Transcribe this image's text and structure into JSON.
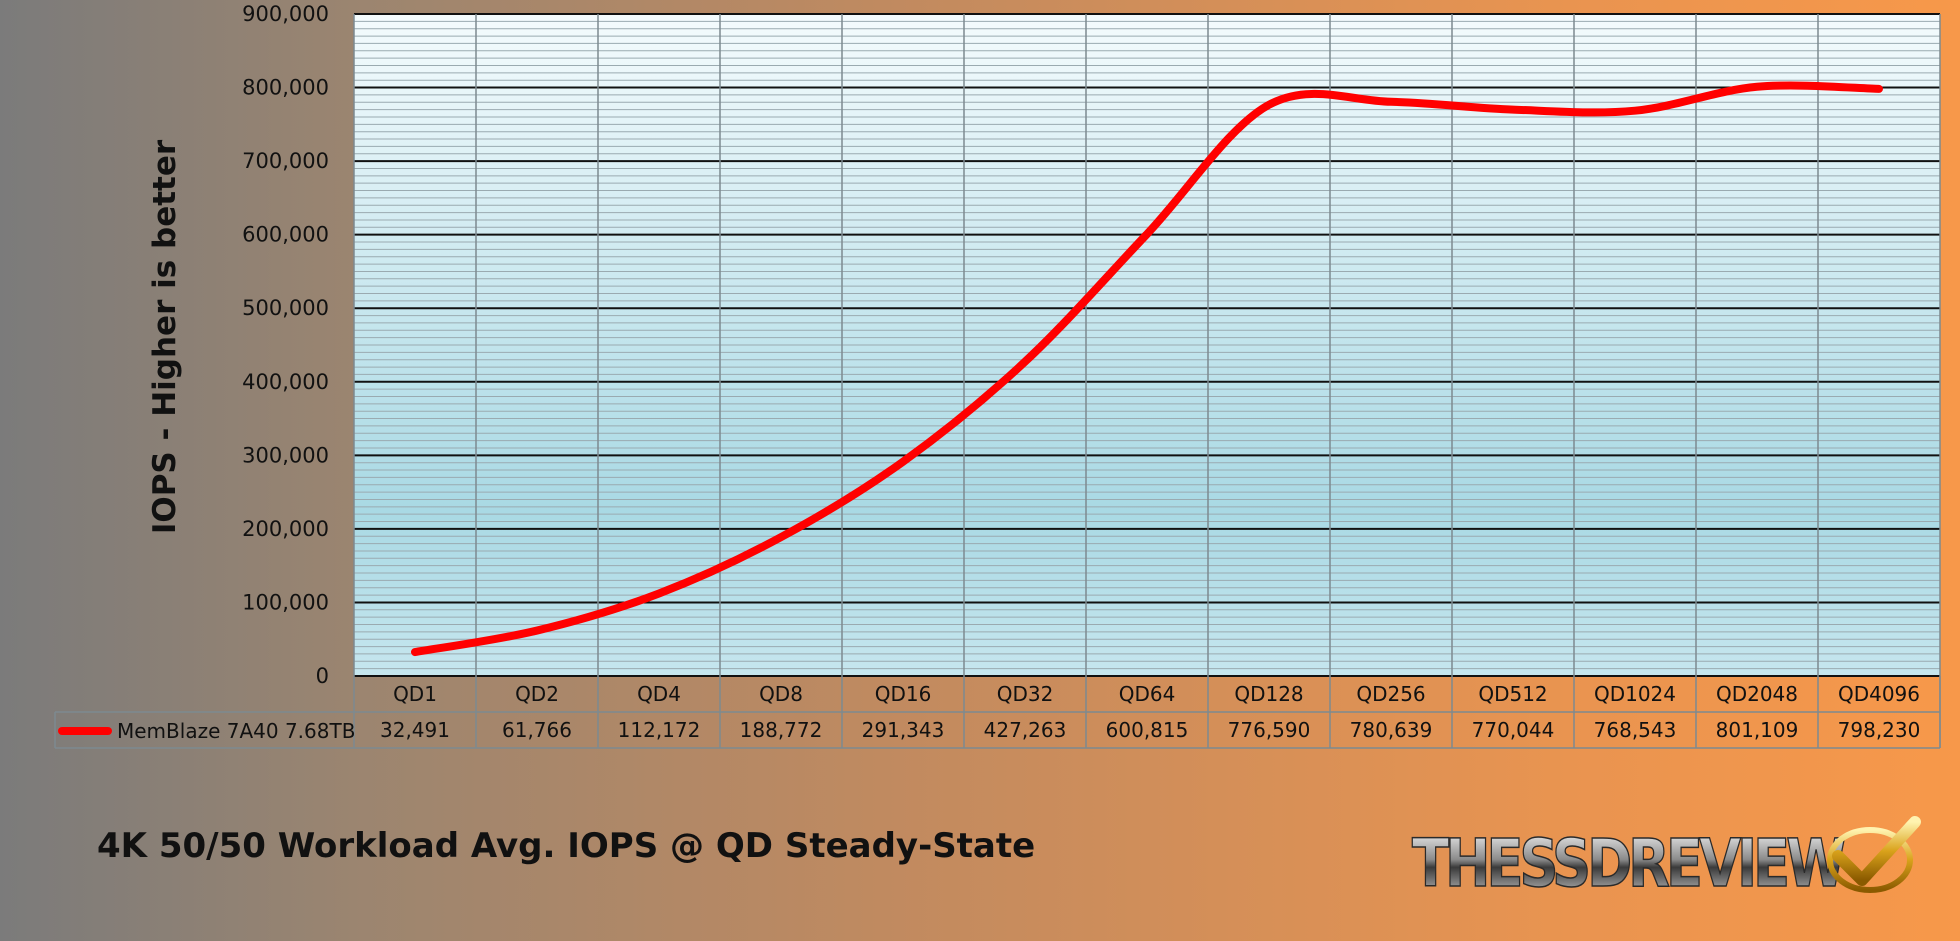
{
  "chart_data": {
    "type": "line",
    "title": "4K 50/50 Workload Avg. IOPS @ QD Steady-State",
    "ylabel": "IOPS - Higher is better",
    "xlabel": "",
    "ylim": [
      0,
      900000
    ],
    "yticks": [
      "0",
      "100,000",
      "200,000",
      "300,000",
      "400,000",
      "500,000",
      "600,000",
      "700,000",
      "800,000",
      "900,000"
    ],
    "categories": [
      "QD1",
      "QD2",
      "QD4",
      "QD8",
      "QD16",
      "QD32",
      "QD64",
      "QD128",
      "QD256",
      "QD512",
      "QD1024",
      "QD2048",
      "QD4096"
    ],
    "series": [
      {
        "name": "MemBlaze 7A40 7.68TB",
        "color": "#ff0000",
        "values": [
          32491,
          61766,
          112172,
          188772,
          291343,
          427263,
          600815,
          776590,
          780639,
          770044,
          768543,
          801109,
          798230
        ],
        "labels": [
          "32,491",
          "61,766",
          "112,172",
          "188,772",
          "291,343",
          "427,263",
          "600,815",
          "776,590",
          "780,639",
          "770,044",
          "768,543",
          "801,109",
          "798,230"
        ]
      }
    ],
    "grid": true,
    "data_table": true
  },
  "logo": {
    "text": "THESSDREVIEW",
    "check_icon": "checkmark-icon"
  }
}
